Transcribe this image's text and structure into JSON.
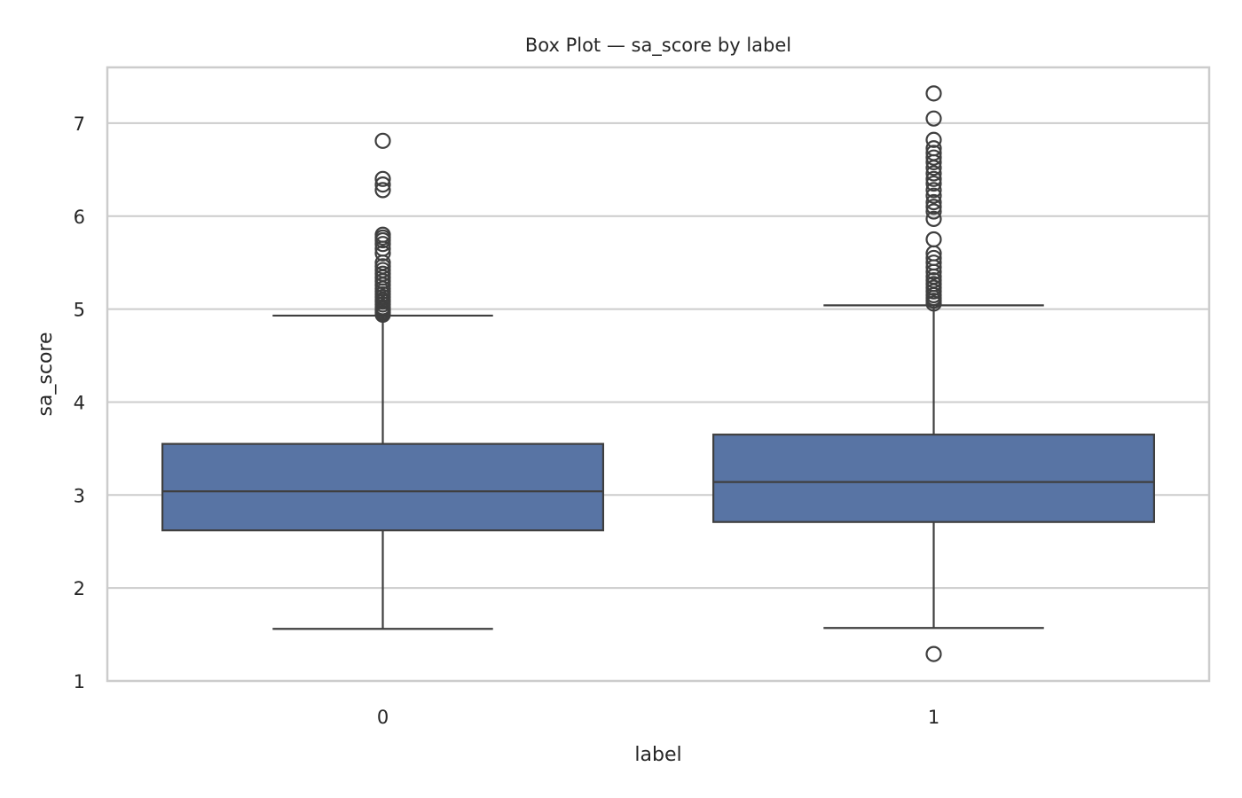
{
  "chart_data": {
    "type": "box",
    "title": "Box Plot — sa_score by label",
    "xlabel": "label",
    "ylabel": "sa_score",
    "ylim": [
      1.0,
      7.6
    ],
    "yticks": [
      "1",
      "2",
      "3",
      "4",
      "5",
      "6",
      "7"
    ],
    "categories": [
      "0",
      "1"
    ],
    "grid": "horizontal",
    "colors": {
      "box_fill": "#5874a4",
      "line": "#3f3f3f",
      "grid": "#cccccc",
      "frame": "#cccccc"
    },
    "boxes": [
      {
        "category": "0",
        "whisker_low": 1.56,
        "q1": 2.62,
        "median": 3.04,
        "q3": 3.55,
        "whisker_high": 4.93,
        "outliers": [
          4.94,
          4.96,
          4.98,
          5.0,
          5.02,
          5.05,
          5.08,
          5.1,
          5.13,
          5.16,
          5.19,
          5.22,
          5.26,
          5.3,
          5.34,
          5.38,
          5.42,
          5.46,
          5.5,
          5.6,
          5.65,
          5.7,
          5.74,
          5.77,
          5.8,
          6.28,
          6.34,
          6.4,
          6.81
        ]
      },
      {
        "category": "1",
        "whisker_low": 1.57,
        "q1": 2.71,
        "median": 3.14,
        "q3": 3.65,
        "whisker_high": 5.04,
        "outliers": [
          1.29,
          5.06,
          5.09,
          5.12,
          5.15,
          5.19,
          5.23,
          5.27,
          5.31,
          5.35,
          5.4,
          5.45,
          5.5,
          5.55,
          5.6,
          5.75,
          5.97,
          6.05,
          6.1,
          6.15,
          6.22,
          6.28,
          6.35,
          6.4,
          6.46,
          6.52,
          6.58,
          6.63,
          6.68,
          6.73,
          6.82,
          7.05,
          7.32
        ]
      }
    ]
  }
}
